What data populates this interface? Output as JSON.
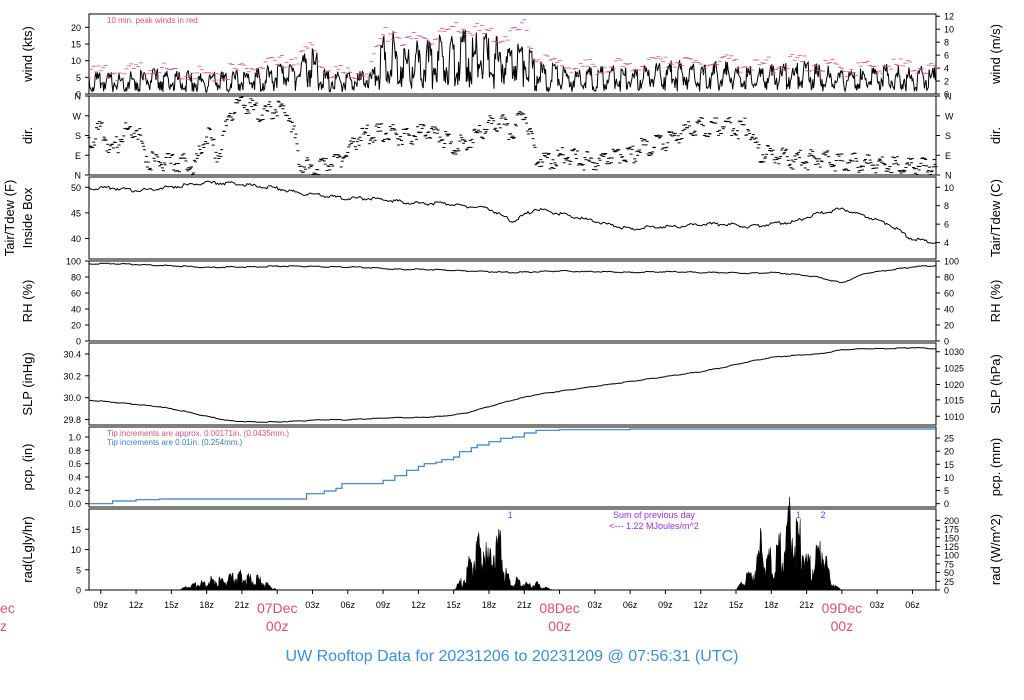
{
  "title": "UW Rooftop Data for 20231206  to  20231209 @ 07:56:31  (UTC)",
  "colors": {
    "line": "#000000",
    "peak": "#d9507a",
    "precip": "#3a7ec8",
    "rad_note": "#9a30d6",
    "date": "#d9506e",
    "title": "#3b8fd6"
  },
  "time_axis": {
    "hours": 72,
    "tick_labels": [
      "09z",
      "12z",
      "15z",
      "18z",
      "21z",
      "03z",
      "06z",
      "09z",
      "12z",
      "15z",
      "18z",
      "21z",
      "03z",
      "06z",
      "09z",
      "12z",
      "15z",
      "18z",
      "21z",
      "03z",
      "06z"
    ],
    "tick_hours": [
      1,
      4,
      7,
      10,
      13,
      19,
      22,
      25,
      28,
      31,
      34,
      37,
      43,
      46,
      49,
      52,
      55,
      58,
      61,
      67,
      70
    ],
    "day_marks": [
      {
        "hour": 16,
        "date": "07Dec",
        "time": "00z"
      },
      {
        "hour": 40,
        "date": "08Dec",
        "time": "00z"
      },
      {
        "hour": 64,
        "date": "09Dec",
        "time": "00z"
      }
    ],
    "edge_date": "ec",
    "edge_time": "z"
  },
  "chart_data": [
    {
      "id": "wind",
      "type": "line",
      "ylabel_left": "wind (kts)",
      "ylabel_right": "wind (m/s)",
      "ylim": [
        0,
        24
      ],
      "left_ticks": [
        0,
        5,
        10,
        15,
        20
      ],
      "right_ticks_kts": [
        0,
        3.89,
        7.78,
        11.66,
        15.55,
        19.44,
        23.33
      ],
      "right_tick_labels": [
        "0",
        "2",
        "4",
        "6",
        "8",
        "10",
        "12"
      ],
      "annotation": "10 min. peak winds in red",
      "series": [
        {
          "name": "wind",
          "hours": [
            0,
            2,
            4,
            6,
            8,
            10,
            12,
            14,
            16,
            18,
            19,
            20,
            22,
            24,
            25,
            26,
            27,
            28,
            30,
            32,
            34,
            36,
            37,
            38,
            40,
            42,
            44,
            46,
            48,
            50,
            52,
            54,
            56,
            58,
            60,
            62,
            64,
            66,
            68,
            70,
            72
          ],
          "values": [
            5,
            5,
            5.5,
            6,
            5.5,
            5,
            5.5,
            6,
            7,
            9,
            12,
            6,
            5,
            6,
            14,
            15,
            12,
            13,
            14,
            16,
            14,
            13,
            15,
            8,
            7,
            6,
            7,
            6,
            7,
            8,
            7,
            8,
            6.5,
            7,
            8,
            7,
            6,
            6,
            7,
            6.5,
            6.5
          ]
        },
        {
          "name": "peak",
          "hours": [
            0,
            2,
            4,
            6,
            8,
            10,
            12,
            14,
            16,
            18,
            19,
            20,
            22,
            24,
            25,
            26,
            27,
            28,
            30,
            32,
            34,
            36,
            37,
            38,
            40,
            42,
            44,
            46,
            48,
            50,
            52,
            54,
            56,
            58,
            60,
            62,
            64,
            66,
            68,
            70,
            72
          ],
          "values": [
            7,
            7.5,
            8,
            8.5,
            8,
            7,
            8,
            9,
            10,
            13,
            15,
            9,
            7,
            9,
            19,
            20,
            17,
            18,
            19,
            21,
            19,
            19,
            21,
            12,
            10,
            9,
            10,
            9,
            10,
            11,
            10,
            11,
            9.5,
            10,
            11,
            10,
            9,
            8.5,
            10,
            9,
            9
          ]
        }
      ]
    },
    {
      "id": "dir",
      "type": "scatter",
      "ylabel_left": "dir.",
      "ylabel_right": "dir.",
      "ylim": [
        0,
        360
      ],
      "tick_values": [
        0,
        90,
        180,
        270,
        360
      ],
      "tick_labels": [
        "N",
        "E",
        "S",
        "W",
        "N"
      ],
      "series": [
        {
          "name": "dir",
          "hours": [
            0,
            1,
            2,
            3,
            4,
            5,
            6,
            7,
            8,
            9,
            10,
            11,
            12,
            13,
            14,
            15,
            16,
            17,
            18,
            19,
            20,
            21,
            22,
            23,
            24,
            25,
            26,
            27,
            28,
            29,
            30,
            31,
            32,
            33,
            34,
            35,
            36,
            37,
            38,
            39,
            40,
            41,
            42,
            43,
            44,
            45,
            46,
            47,
            48,
            49,
            50,
            51,
            52,
            53,
            54,
            55,
            56,
            57,
            58,
            59,
            60,
            61,
            62,
            63,
            64,
            65,
            66,
            67,
            68,
            69,
            70,
            71,
            72
          ],
          "values": [
            170,
            230,
            120,
            220,
            240,
            90,
            80,
            75,
            85,
            60,
            220,
            110,
            310,
            350,
            320,
            300,
            330,
            300,
            80,
            40,
            60,
            90,
            120,
            200,
            210,
            220,
            210,
            190,
            210,
            220,
            200,
            150,
            170,
            210,
            250,
            270,
            210,
            320,
            110,
            80,
            110,
            100,
            90,
            80,
            100,
            120,
            110,
            150,
            160,
            170,
            210,
            230,
            240,
            240,
            250,
            230,
            240,
            120,
            110,
            100,
            90,
            90,
            100,
            90,
            80,
            80,
            75,
            70,
            70,
            60,
            65,
            60,
            60
          ]
        }
      ]
    },
    {
      "id": "temp",
      "type": "line",
      "ylabel_left": "Tair/Tdew (F)",
      "ylabel_left2": "Inside Box",
      "ylabel_right": "Tair/Tdew (C)",
      "ylim": [
        36,
        52
      ],
      "left_ticks": [
        40,
        45,
        50
      ],
      "right_ticks_f": [
        39.2,
        42.8,
        46.4,
        50
      ],
      "right_tick_labels": [
        "4",
        "6",
        "8",
        "10"
      ],
      "series": [
        {
          "name": "temp",
          "hours": [
            0,
            2,
            4,
            6,
            8,
            10,
            12,
            14,
            16,
            18,
            20,
            22,
            24,
            26,
            28,
            30,
            32,
            34,
            36,
            38,
            40,
            42,
            44,
            46,
            48,
            50,
            52,
            54,
            56,
            58,
            60,
            62,
            64,
            66,
            68,
            70,
            72
          ],
          "values": [
            50,
            50,
            49.5,
            50,
            50.5,
            51,
            51,
            50.5,
            50,
            49,
            48.5,
            48,
            48,
            47.5,
            47,
            47,
            46.5,
            46,
            43.5,
            46,
            45,
            44,
            43,
            42,
            42.5,
            42.5,
            43,
            43,
            42.5,
            43,
            43.5,
            45,
            46,
            44.5,
            43,
            40,
            39.5
          ]
        }
      ]
    },
    {
      "id": "rh",
      "type": "line",
      "ylabel_left": "RH (%)",
      "ylabel_right": "RH (%)",
      "ylim": [
        0,
        100
      ],
      "left_ticks": [
        0,
        20,
        40,
        60,
        80,
        100
      ],
      "right_tick_labels": [
        "0",
        "20",
        "40",
        "60",
        "80",
        "100"
      ],
      "series": [
        {
          "name": "rh",
          "hours": [
            0,
            2,
            4,
            6,
            8,
            10,
            12,
            14,
            16,
            18,
            20,
            22,
            24,
            26,
            28,
            30,
            32,
            34,
            36,
            38,
            40,
            42,
            44,
            46,
            48,
            50,
            52,
            54,
            56,
            58,
            60,
            62,
            64,
            66,
            68,
            70,
            72
          ],
          "values": [
            97,
            97,
            96,
            95,
            94,
            92,
            93,
            93,
            94,
            94,
            93,
            93,
            92,
            90,
            90,
            89,
            88,
            87,
            86,
            87,
            88,
            87,
            87,
            86,
            87,
            87,
            86,
            86,
            85,
            86,
            84,
            80,
            73,
            85,
            89,
            93,
            95
          ]
        }
      ]
    },
    {
      "id": "slp",
      "type": "line",
      "ylabel_left": "SLP (inHg)",
      "ylabel_right": "SLP (hPa)",
      "ylim": [
        29.75,
        30.5
      ],
      "left_ticks": [
        29.8,
        30.0,
        30.2,
        30.4
      ],
      "right_ticks_inhg": [
        29.83,
        29.98,
        30.12,
        30.27,
        30.42
      ],
      "right_tick_labels": [
        "1010",
        "1015",
        "1020",
        "1025",
        "1030"
      ],
      "series": [
        {
          "name": "slp",
          "hours": [
            0,
            2,
            4,
            6,
            8,
            10,
            12,
            14,
            16,
            18,
            20,
            22,
            24,
            26,
            28,
            30,
            32,
            34,
            36,
            38,
            40,
            42,
            44,
            46,
            48,
            50,
            52,
            54,
            56,
            58,
            60,
            62,
            64,
            66,
            68,
            70,
            72
          ],
          "values": [
            29.98,
            29.96,
            29.94,
            29.92,
            29.88,
            29.83,
            29.79,
            29.78,
            29.78,
            29.79,
            29.8,
            29.8,
            29.81,
            29.82,
            29.82,
            29.83,
            29.86,
            29.92,
            29.98,
            30.03,
            30.06,
            30.09,
            30.12,
            30.15,
            30.18,
            30.21,
            30.24,
            30.28,
            30.33,
            30.37,
            30.39,
            30.4,
            30.44,
            30.45,
            30.45,
            30.46,
            30.45
          ]
        }
      ]
    },
    {
      "id": "pcp",
      "type": "line",
      "ylabel_left": "pcp. (in)",
      "ylabel_right": "pcp. (mm)",
      "ylim": [
        -0.05,
        1.15
      ],
      "left_ticks": [
        0,
        0.2,
        0.4,
        0.6,
        0.8,
        1.0
      ],
      "right_ticks_in": [
        0,
        0.197,
        0.394,
        0.591,
        0.787,
        0.984
      ],
      "right_tick_labels": [
        "0",
        "5",
        "10",
        "15",
        "20",
        "25"
      ],
      "note_red": "Tip increments are approx. 0.00171in. (0.0435mm.)",
      "note_blue": "Tip increments are 0.01in. (0.254mm.)",
      "series": [
        {
          "name": "pcp",
          "hours": [
            0,
            2,
            4,
            6,
            10,
            15,
            18,
            18.5,
            20,
            21,
            21.5,
            25,
            26,
            27,
            28,
            28.5,
            29.5,
            30,
            31,
            31.5,
            32.5,
            33,
            34,
            35,
            36,
            37,
            38,
            40,
            46,
            60,
            72
          ],
          "values": [
            0,
            0.04,
            0.06,
            0.07,
            0.07,
            0.07,
            0.07,
            0.15,
            0.19,
            0.23,
            0.3,
            0.35,
            0.42,
            0.5,
            0.56,
            0.6,
            0.62,
            0.66,
            0.7,
            0.78,
            0.84,
            0.88,
            0.93,
            0.98,
            1.0,
            1.06,
            1.1,
            1.11,
            1.12,
            1.12,
            1.12
          ]
        }
      ]
    },
    {
      "id": "rad",
      "type": "area",
      "ylabel_left": "rad(Lgly/hr)",
      "ylabel_right": "rad (W/m^2)",
      "ylim": [
        0,
        20
      ],
      "left_ticks": [
        0,
        5,
        10,
        15
      ],
      "right_ticks_lgly": [
        0,
        2.15,
        4.3,
        6.45,
        8.6,
        10.75,
        12.9,
        15.05,
        17.2
      ],
      "right_tick_labels": [
        "0",
        "25",
        "50",
        "75",
        "100",
        "125",
        "150",
        "175",
        "200"
      ],
      "note_line1": "Sum of previous day",
      "note_line2": "<--- 1.22 MJoules/m^2",
      "marker_labels": [
        "1",
        "1",
        "2"
      ],
      "marker_hours": [
        35.8,
        60.3,
        62.4
      ],
      "series": [
        {
          "name": "rad",
          "hours": [
            7.5,
            8.5,
            9.5,
            10.5,
            11.5,
            12.5,
            13,
            13.5,
            14.5,
            15.5,
            16,
            31,
            31.5,
            32,
            32.5,
            33,
            33.5,
            34,
            34.5,
            35,
            35.2,
            35.5,
            36,
            36.5,
            37,
            37.5,
            38,
            38.5,
            39,
            39.5,
            40,
            55,
            55.5,
            56,
            56.5,
            57,
            57.2,
            57.5,
            58,
            58.5,
            59,
            59.2,
            59.5,
            60,
            60.5,
            60.8,
            61,
            61.5,
            62,
            62.3,
            62.6,
            63,
            63.5,
            64
          ],
          "values": [
            0,
            1,
            2,
            3,
            2.5,
            4,
            4.5,
            3.5,
            3,
            1,
            0,
            0,
            2,
            4,
            9,
            11,
            13,
            8,
            12,
            15,
            8,
            4,
            2,
            3,
            2,
            1.5,
            2,
            1,
            0.5,
            0,
            0,
            0,
            2,
            4,
            6,
            10,
            18,
            7,
            9,
            11,
            13,
            15,
            19,
            16,
            14,
            12,
            8,
            7,
            10,
            13,
            8,
            3,
            1,
            0
          ]
        }
      ]
    }
  ]
}
